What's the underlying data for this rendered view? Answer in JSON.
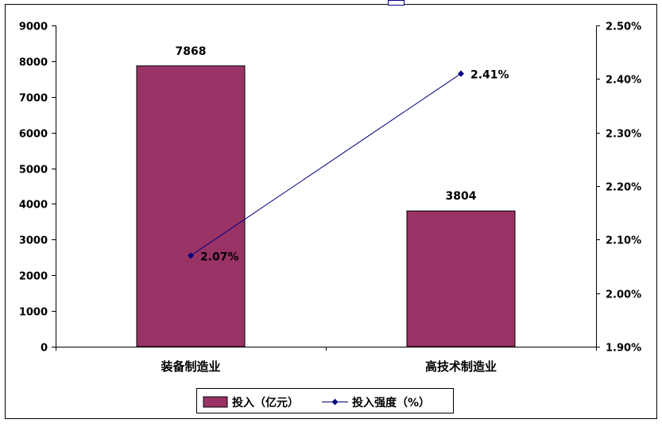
{
  "chart_data": {
    "type": "bar",
    "categories": [
      "装备制造业",
      "高技术制造业"
    ],
    "series": [
      {
        "name": "投入（亿元）",
        "type": "bar",
        "axis": "left",
        "color": "#993366",
        "values": [
          7868,
          3804
        ],
        "labels": [
          "7868",
          "3804"
        ]
      },
      {
        "name": "投入强度（%）",
        "type": "line",
        "axis": "right",
        "color": "#000080",
        "values": [
          2.07,
          2.41
        ],
        "labels": [
          "2.07%",
          "2.41%"
        ]
      }
    ],
    "y_left": {
      "min": 0,
      "max": 9000,
      "ticks": [
        "0",
        "1000",
        "2000",
        "3000",
        "4000",
        "5000",
        "6000",
        "7000",
        "8000",
        "9000"
      ]
    },
    "y_right": {
      "min": 1.9,
      "max": 2.5,
      "ticks": [
        "1.90%",
        "2.00%",
        "2.10%",
        "2.20%",
        "2.30%",
        "2.40%",
        "2.50%"
      ]
    },
    "legend_position": "bottom",
    "grid": false
  }
}
